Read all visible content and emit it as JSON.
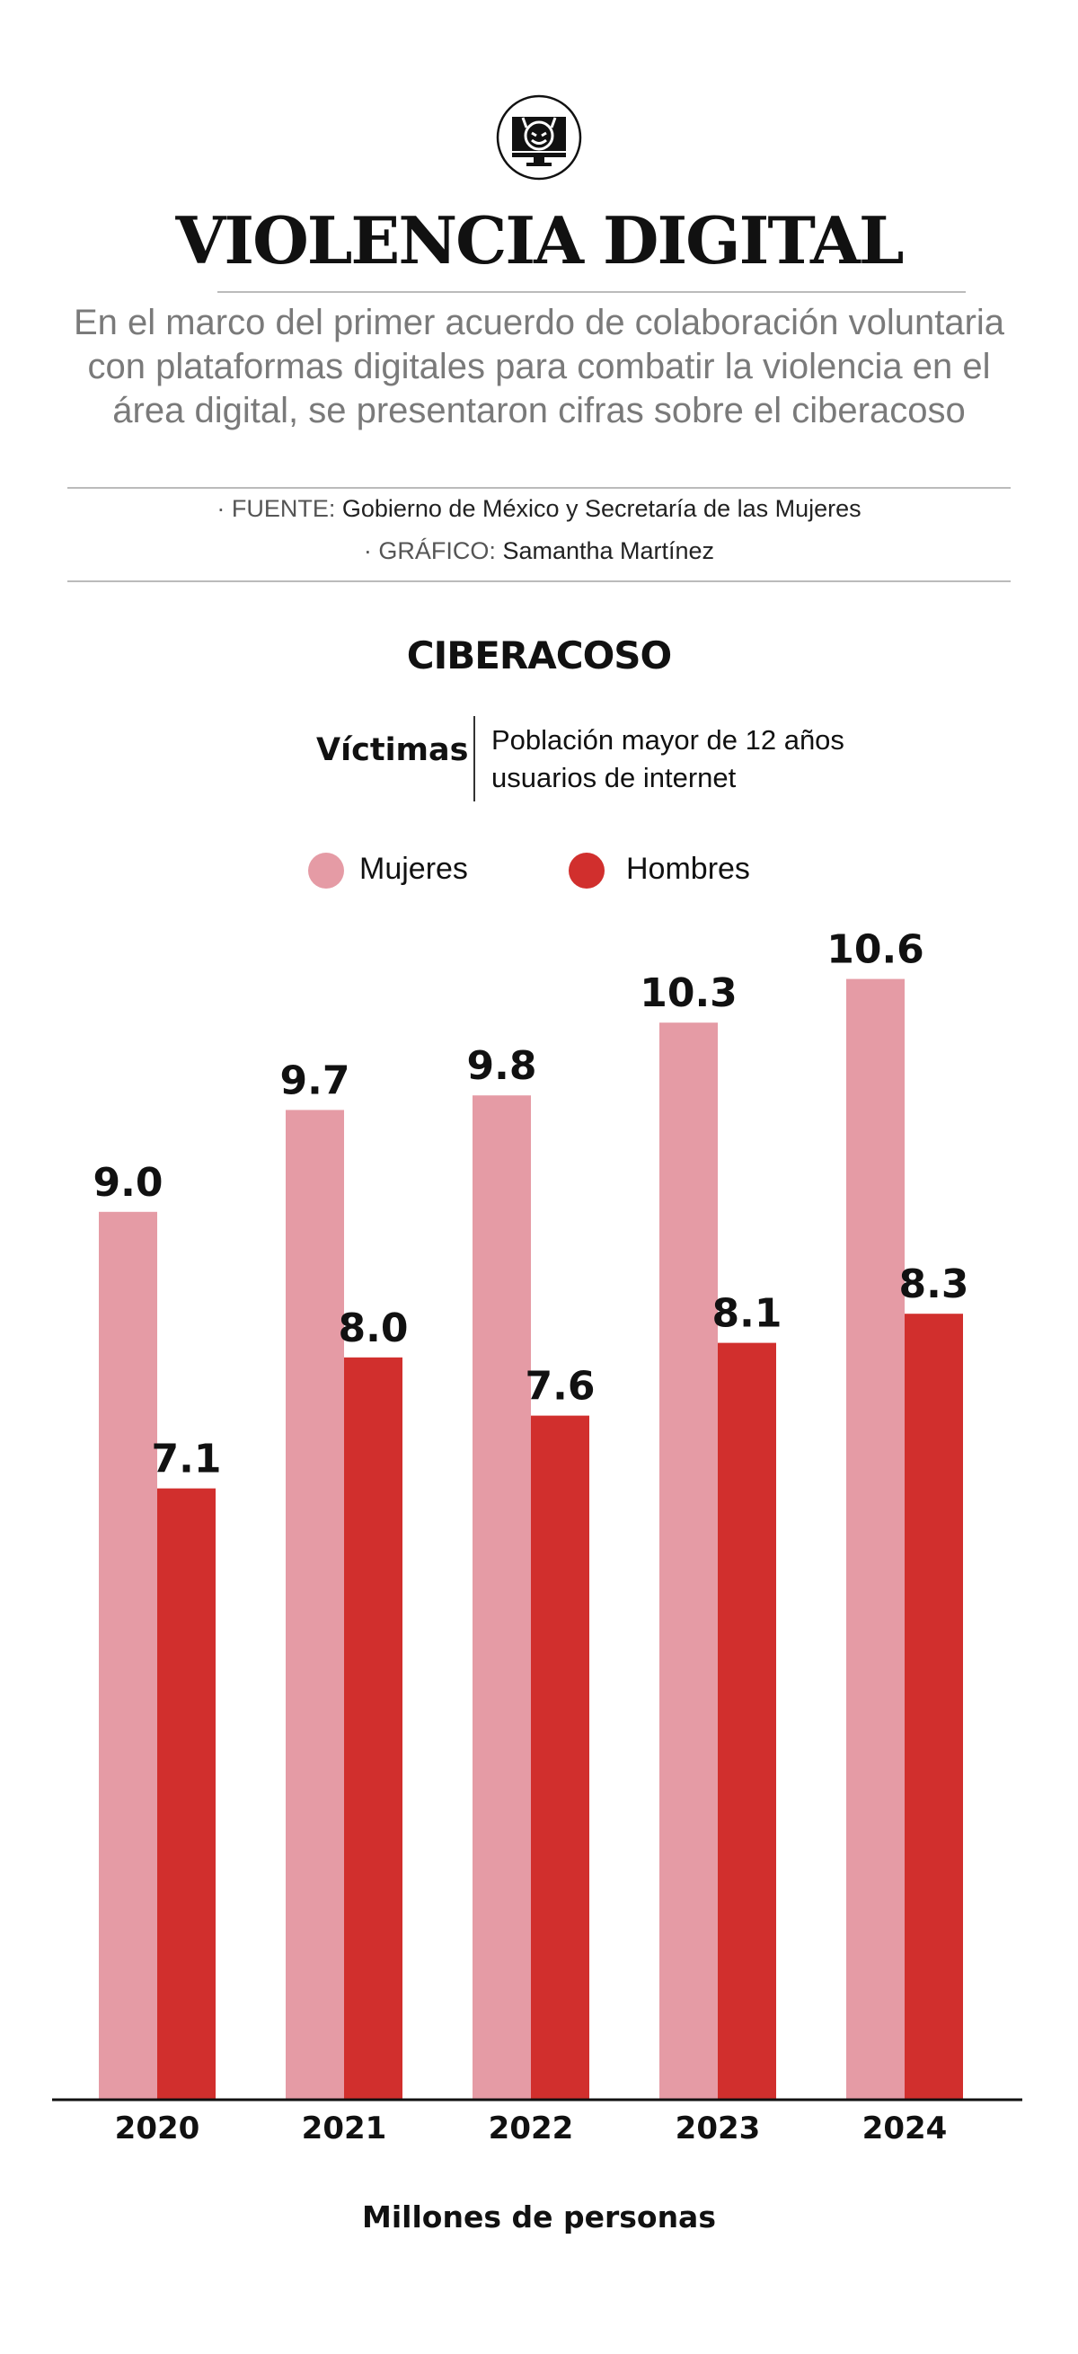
{
  "header": {
    "icon": "devil-computer-icon",
    "title": "VIOLENCIA DIGITAL",
    "subtitle": "En el marco del primer acuerdo de colaboración voluntaria con plataformas digitales para combatir la violencia en el área digital, se presentaron cifras sobre el ciberacoso",
    "source_label": "· FUENTE:",
    "source": "Gobierno de México y Secretaría de las Mujeres",
    "graphic_label": "· GRÁFICO:",
    "graphic": "Samantha Martínez"
  },
  "chart_data": {
    "type": "bar",
    "title": "CIBERACOSO",
    "subtitle_label": "Víctimas",
    "subtitle_desc_1": "Población mayor de 12 años",
    "subtitle_desc_2": "usuarios de internet",
    "categories": [
      "2020",
      "2021",
      "2022",
      "2023",
      "2024"
    ],
    "series": [
      {
        "name": "Mujeres",
        "color": "#e59ba5",
        "values": [
          9.0,
          9.7,
          9.8,
          10.3,
          10.6
        ],
        "labels": [
          "9.0",
          "9.7",
          "9.8",
          "10.3",
          "10.6"
        ]
      },
      {
        "name": "Hombres",
        "color": "#d12f2d",
        "values": [
          7.1,
          8.0,
          7.6,
          8.1,
          8.3
        ],
        "labels": [
          "7.1",
          "8.0",
          "7.6",
          "8.1",
          "8.3"
        ]
      }
    ],
    "xlabel": "Millones de personas",
    "legend": "top",
    "grid": false
  }
}
